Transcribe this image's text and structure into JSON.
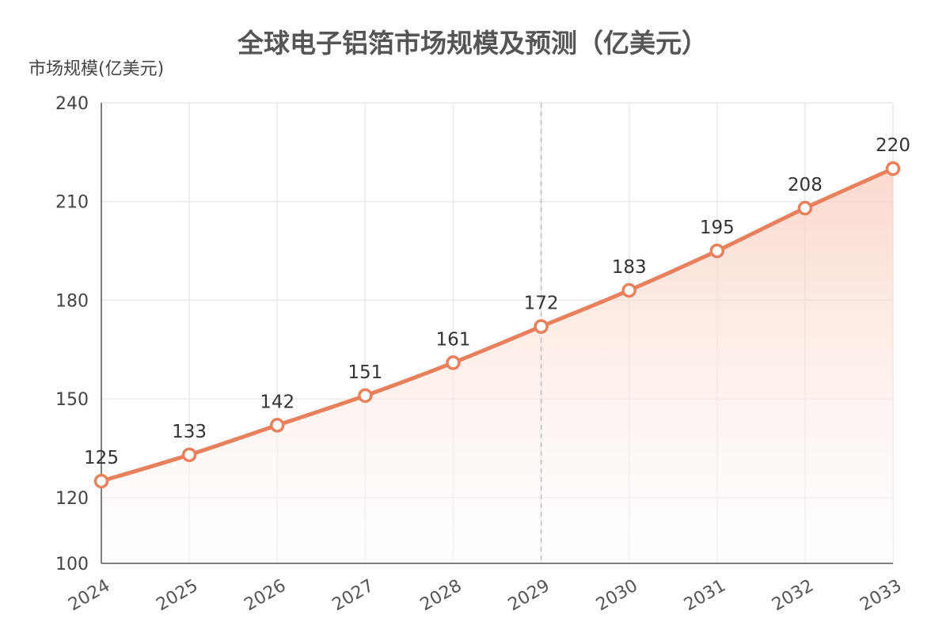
{
  "chart_data": {
    "type": "area",
    "title": "全球电子铝箔市场规模及预测（亿美元）",
    "ylabel": "市场规模(亿美元)",
    "xlabel": "",
    "categories": [
      "2024",
      "2025",
      "2026",
      "2027",
      "2028",
      "2029",
      "2030",
      "2031",
      "2032",
      "2033"
    ],
    "values": [
      125,
      133,
      142,
      151,
      161,
      172,
      183,
      195,
      208,
      220
    ],
    "ylim": [
      100,
      240
    ],
    "yticks": [
      "100",
      "120",
      "150",
      "180",
      "210",
      "240"
    ],
    "grid": true,
    "reference_line_at": "2029",
    "colors": {
      "line": "#E8805C",
      "area_top": "#F9C9B8",
      "marker_fill": "#ffffff",
      "grid": "#e9e9e9",
      "axis": "#555555",
      "reference_line": "#bbbbbb"
    }
  }
}
